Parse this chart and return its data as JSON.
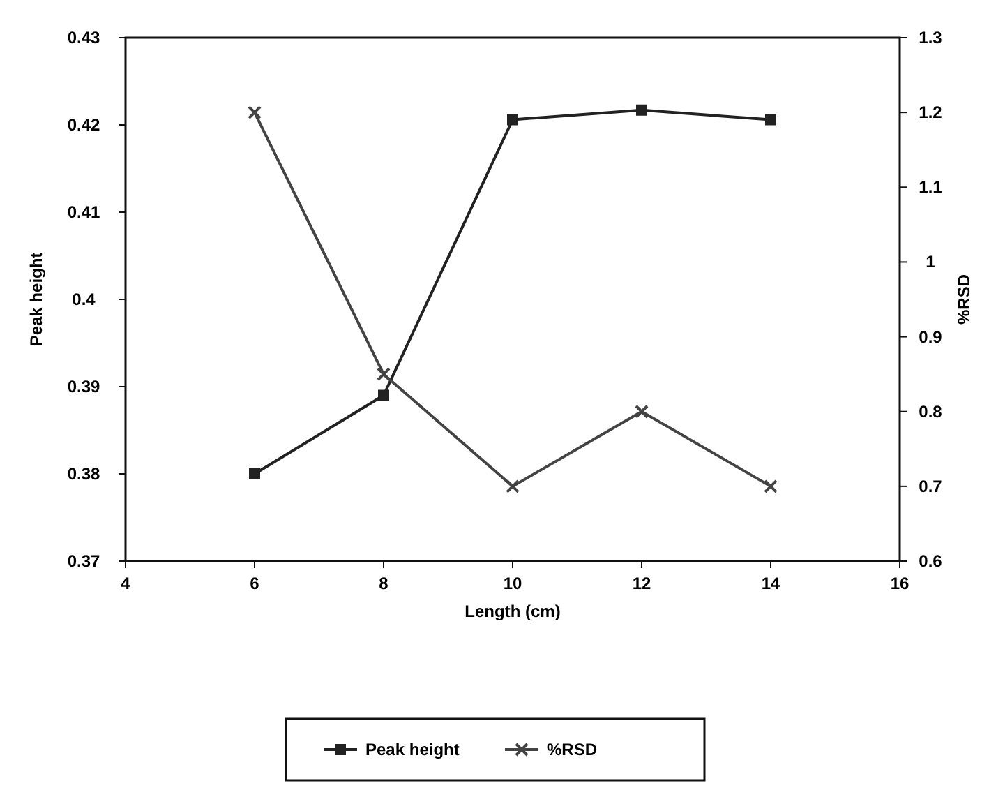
{
  "chart_data": {
    "type": "line",
    "xlabel": "Length (cm)",
    "ylabel": "Peak height",
    "y2label": "%RSD",
    "x": [
      6,
      8,
      10,
      12,
      14
    ],
    "series": [
      {
        "name": "Peak height",
        "color": "#222222",
        "values": [
          0.38,
          0.389,
          0.4206,
          0.4217,
          0.4206
        ],
        "marker": "square"
      },
      {
        "name": "%RSD",
        "color": "#444444",
        "values": [
          1.2,
          0.85,
          0.7,
          0.8,
          0.7
        ],
        "axis": "y2",
        "marker": "cross"
      }
    ],
    "xlim": [
      4,
      16
    ],
    "xticks": [
      4,
      6,
      8,
      10,
      12,
      14,
      16
    ],
    "ylim": [
      0.37,
      0.43
    ],
    "yticks": [
      0.37,
      0.38,
      0.39,
      0.4,
      0.41,
      0.42,
      0.43
    ],
    "y2lim": [
      0.6,
      1.3
    ],
    "y2ticks": [
      0.6,
      0.7,
      0.8,
      0.9,
      1,
      1.1,
      1.2,
      1.3
    ],
    "legend": "bottom",
    "grid": false,
    "line_style": "solid"
  }
}
